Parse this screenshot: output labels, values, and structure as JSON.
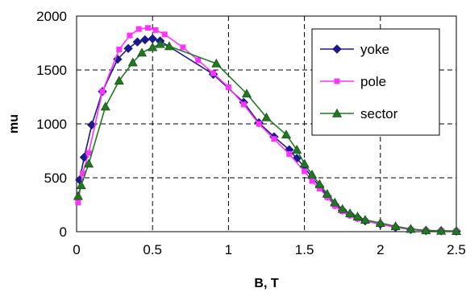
{
  "chart_data": {
    "type": "line",
    "xlabel": "B, T",
    "ylabel": "mu",
    "xlim": [
      0,
      2.5
    ],
    "ylim": [
      0,
      2000
    ],
    "xticks": [
      0,
      0.5,
      1,
      1.5,
      2,
      2.5
    ],
    "yticks": [
      0,
      500,
      1000,
      1500,
      2000
    ],
    "xtick_labels": [
      "0",
      "0.5",
      "1",
      "1.5",
      "2",
      "2.5"
    ],
    "ytick_labels": [
      "0",
      "500",
      "1000",
      "1500",
      "2000"
    ],
    "grid": "dashed",
    "legend_position": "top-right",
    "series": [
      {
        "name": "yoke",
        "color": "#1a1a8c",
        "marker": "diamond",
        "points": [
          [
            0.02,
            480
          ],
          [
            0.05,
            690
          ],
          [
            0.1,
            990
          ],
          [
            0.17,
            1300
          ],
          [
            0.27,
            1600
          ],
          [
            0.34,
            1700
          ],
          [
            0.4,
            1760
          ],
          [
            0.45,
            1780
          ],
          [
            0.5,
            1790
          ],
          [
            0.55,
            1770
          ],
          [
            0.9,
            1460
          ],
          [
            1.1,
            1200
          ],
          [
            1.2,
            1010
          ],
          [
            1.3,
            880
          ],
          [
            1.4,
            760
          ],
          [
            1.45,
            680
          ],
          [
            1.5,
            600
          ],
          [
            1.55,
            500
          ],
          [
            1.6,
            420
          ],
          [
            1.65,
            330
          ],
          [
            1.7,
            250
          ],
          [
            1.75,
            200
          ],
          [
            1.8,
            160
          ],
          [
            1.85,
            130
          ],
          [
            1.9,
            100
          ],
          [
            2.0,
            70
          ],
          [
            2.1,
            40
          ],
          [
            2.2,
            20
          ],
          [
            2.3,
            10
          ],
          [
            2.4,
            8
          ],
          [
            2.5,
            5
          ]
        ]
      },
      {
        "name": "pole",
        "color": "#ff33ff",
        "marker": "square",
        "points": [
          [
            0.01,
            270
          ],
          [
            0.04,
            540
          ],
          [
            0.08,
            730
          ],
          [
            0.17,
            1300
          ],
          [
            0.28,
            1690
          ],
          [
            0.35,
            1820
          ],
          [
            0.41,
            1880
          ],
          [
            0.47,
            1890
          ],
          [
            0.52,
            1870
          ],
          [
            0.58,
            1830
          ],
          [
            0.7,
            1710
          ],
          [
            0.8,
            1590
          ],
          [
            0.9,
            1470
          ],
          [
            1.0,
            1340
          ],
          [
            1.1,
            1180
          ],
          [
            1.2,
            1000
          ],
          [
            1.3,
            860
          ],
          [
            1.4,
            720
          ],
          [
            1.5,
            560
          ],
          [
            1.55,
            470
          ],
          [
            1.6,
            400
          ],
          [
            1.65,
            320
          ],
          [
            1.7,
            240
          ],
          [
            1.75,
            190
          ],
          [
            1.8,
            150
          ],
          [
            1.85,
            120
          ],
          [
            1.9,
            100
          ],
          [
            2.0,
            70
          ],
          [
            2.1,
            40
          ],
          [
            2.2,
            20
          ],
          [
            2.3,
            10
          ],
          [
            2.4,
            8
          ],
          [
            2.5,
            5
          ]
        ]
      },
      {
        "name": "sector",
        "color": "#1f7a1f",
        "marker": "triangle",
        "points": [
          [
            0.01,
            330
          ],
          [
            0.03,
            430
          ],
          [
            0.08,
            630
          ],
          [
            0.19,
            1160
          ],
          [
            0.28,
            1400
          ],
          [
            0.37,
            1570
          ],
          [
            0.43,
            1660
          ],
          [
            0.5,
            1710
          ],
          [
            0.55,
            1740
          ],
          [
            0.61,
            1720
          ],
          [
            0.92,
            1560
          ],
          [
            1.12,
            1280
          ],
          [
            1.25,
            1060
          ],
          [
            1.38,
            900
          ],
          [
            1.45,
            760
          ],
          [
            1.5,
            630
          ],
          [
            1.55,
            530
          ],
          [
            1.6,
            440
          ],
          [
            1.65,
            350
          ],
          [
            1.7,
            270
          ],
          [
            1.75,
            210
          ],
          [
            1.8,
            170
          ],
          [
            1.85,
            140
          ],
          [
            1.9,
            110
          ],
          [
            2.0,
            80
          ],
          [
            2.1,
            50
          ],
          [
            2.2,
            25
          ],
          [
            2.3,
            12
          ],
          [
            2.4,
            8
          ],
          [
            2.5,
            5
          ]
        ]
      }
    ]
  }
}
